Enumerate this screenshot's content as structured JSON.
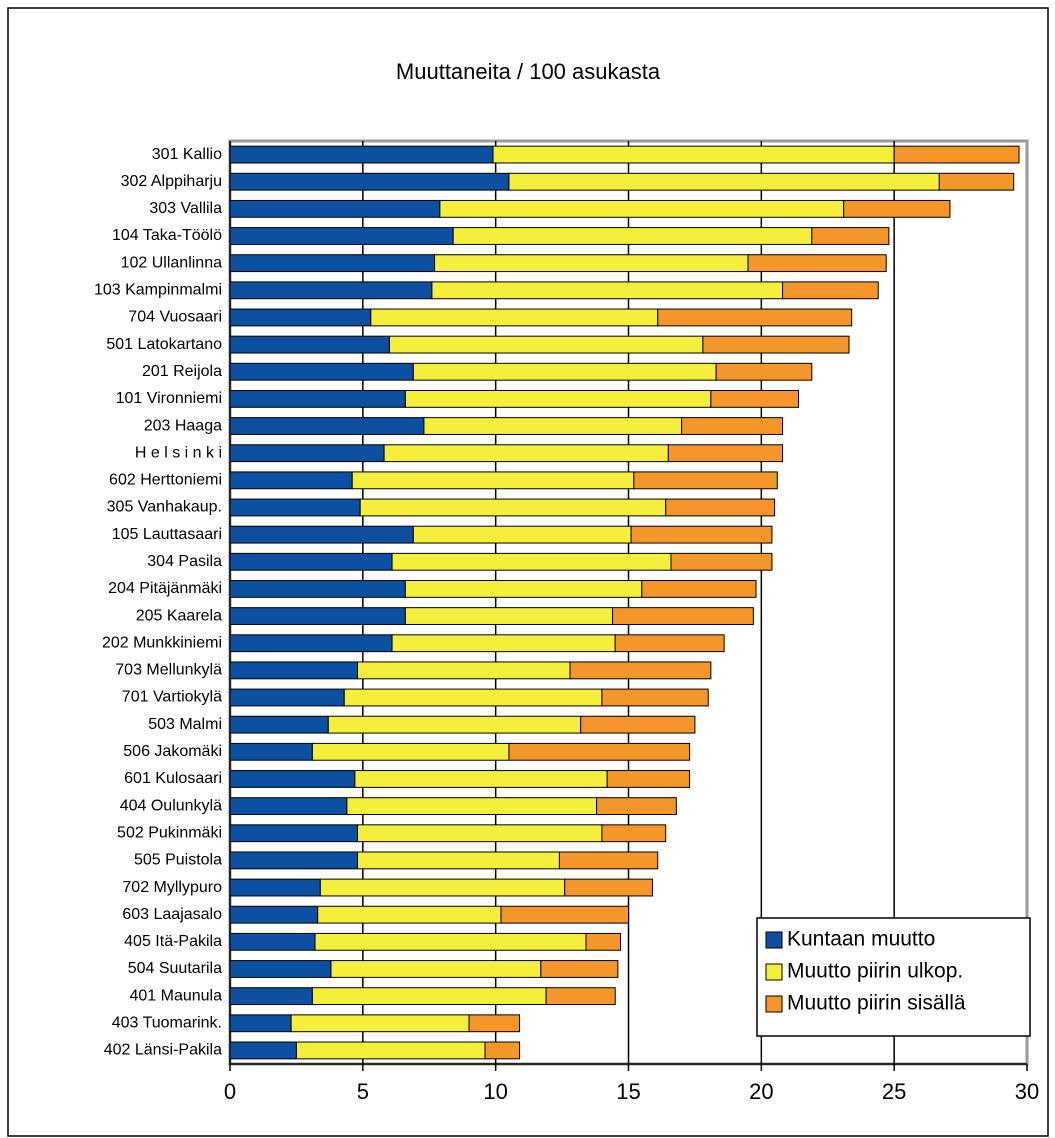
{
  "chart_data": {
    "type": "stacked_barh",
    "title": "Muuttaneita / 100 asukasta",
    "categories": [
      "301 Kallio",
      "302 Alppiharju",
      "303 Vallila",
      "104 Taka-Töölö",
      "102 Ullanlinna",
      "103 Kampinmalmi",
      "704 Vuosaari",
      "501 Latokartano",
      "201 Reijola",
      "101 Vironniemi",
      "203 Haaga",
      "H e l s i n k i",
      "602 Herttoniemi",
      "305 Vanhakaup.",
      "105 Lauttasaari",
      "304 Pasila",
      "204 Pitäjänmäki",
      "205 Kaarela",
      "202 Munkkiniemi",
      "703 Mellunkylä",
      "701 Vartiokylä",
      "503 Malmi",
      "506 Jakomäki",
      "601 Kulosaari",
      "404 Oulunkylä",
      "502 Pukinmäki",
      "505 Puistola",
      "702 Myllypuro",
      "603 Laajasalo",
      "405 Itä-Pakila",
      "504 Suutarila",
      "401 Maunula",
      "403 Tuomarink.",
      "402 Länsi-Pakila"
    ],
    "series": [
      {
        "name": "Kuntaan muutto",
        "color": "#0d4fa0",
        "values": [
          9.9,
          10.5,
          7.9,
          8.4,
          7.7,
          7.6,
          5.3,
          6.0,
          6.9,
          6.6,
          7.3,
          5.8,
          4.6,
          4.9,
          6.9,
          6.1,
          6.6,
          6.6,
          6.1,
          4.8,
          4.3,
          3.7,
          3.1,
          4.7,
          4.4,
          4.8,
          4.8,
          3.4,
          3.3,
          3.2,
          3.8,
          3.1,
          2.3,
          2.5
        ]
      },
      {
        "name": "Muutto piirin ulkop.",
        "color": "#f5ee3a",
        "values": [
          15.1,
          16.2,
          15.2,
          13.5,
          11.8,
          13.2,
          10.8,
          11.8,
          11.4,
          11.5,
          9.7,
          10.7,
          10.6,
          11.5,
          8.2,
          10.5,
          8.9,
          7.8,
          8.4,
          8.0,
          9.7,
          9.5,
          7.4,
          9.5,
          9.4,
          9.2,
          7.6,
          9.2,
          6.9,
          10.2,
          7.9,
          8.8,
          6.7,
          7.1
        ]
      },
      {
        "name": "Muutto piirin sisällä",
        "color": "#f5962a",
        "values": [
          4.7,
          2.8,
          4.0,
          2.9,
          5.2,
          3.6,
          7.3,
          5.5,
          3.6,
          3.3,
          3.8,
          4.3,
          5.4,
          4.1,
          5.3,
          3.8,
          4.3,
          5.3,
          4.1,
          5.3,
          4.0,
          4.3,
          6.8,
          3.1,
          3.0,
          2.4,
          3.7,
          3.3,
          4.8,
          1.3,
          2.9,
          2.6,
          1.9,
          1.3
        ]
      }
    ],
    "xlim": [
      0,
      30
    ],
    "xticks": [
      0,
      5,
      10,
      15,
      20,
      25,
      30
    ],
    "grid": true,
    "legend": "lower right"
  }
}
